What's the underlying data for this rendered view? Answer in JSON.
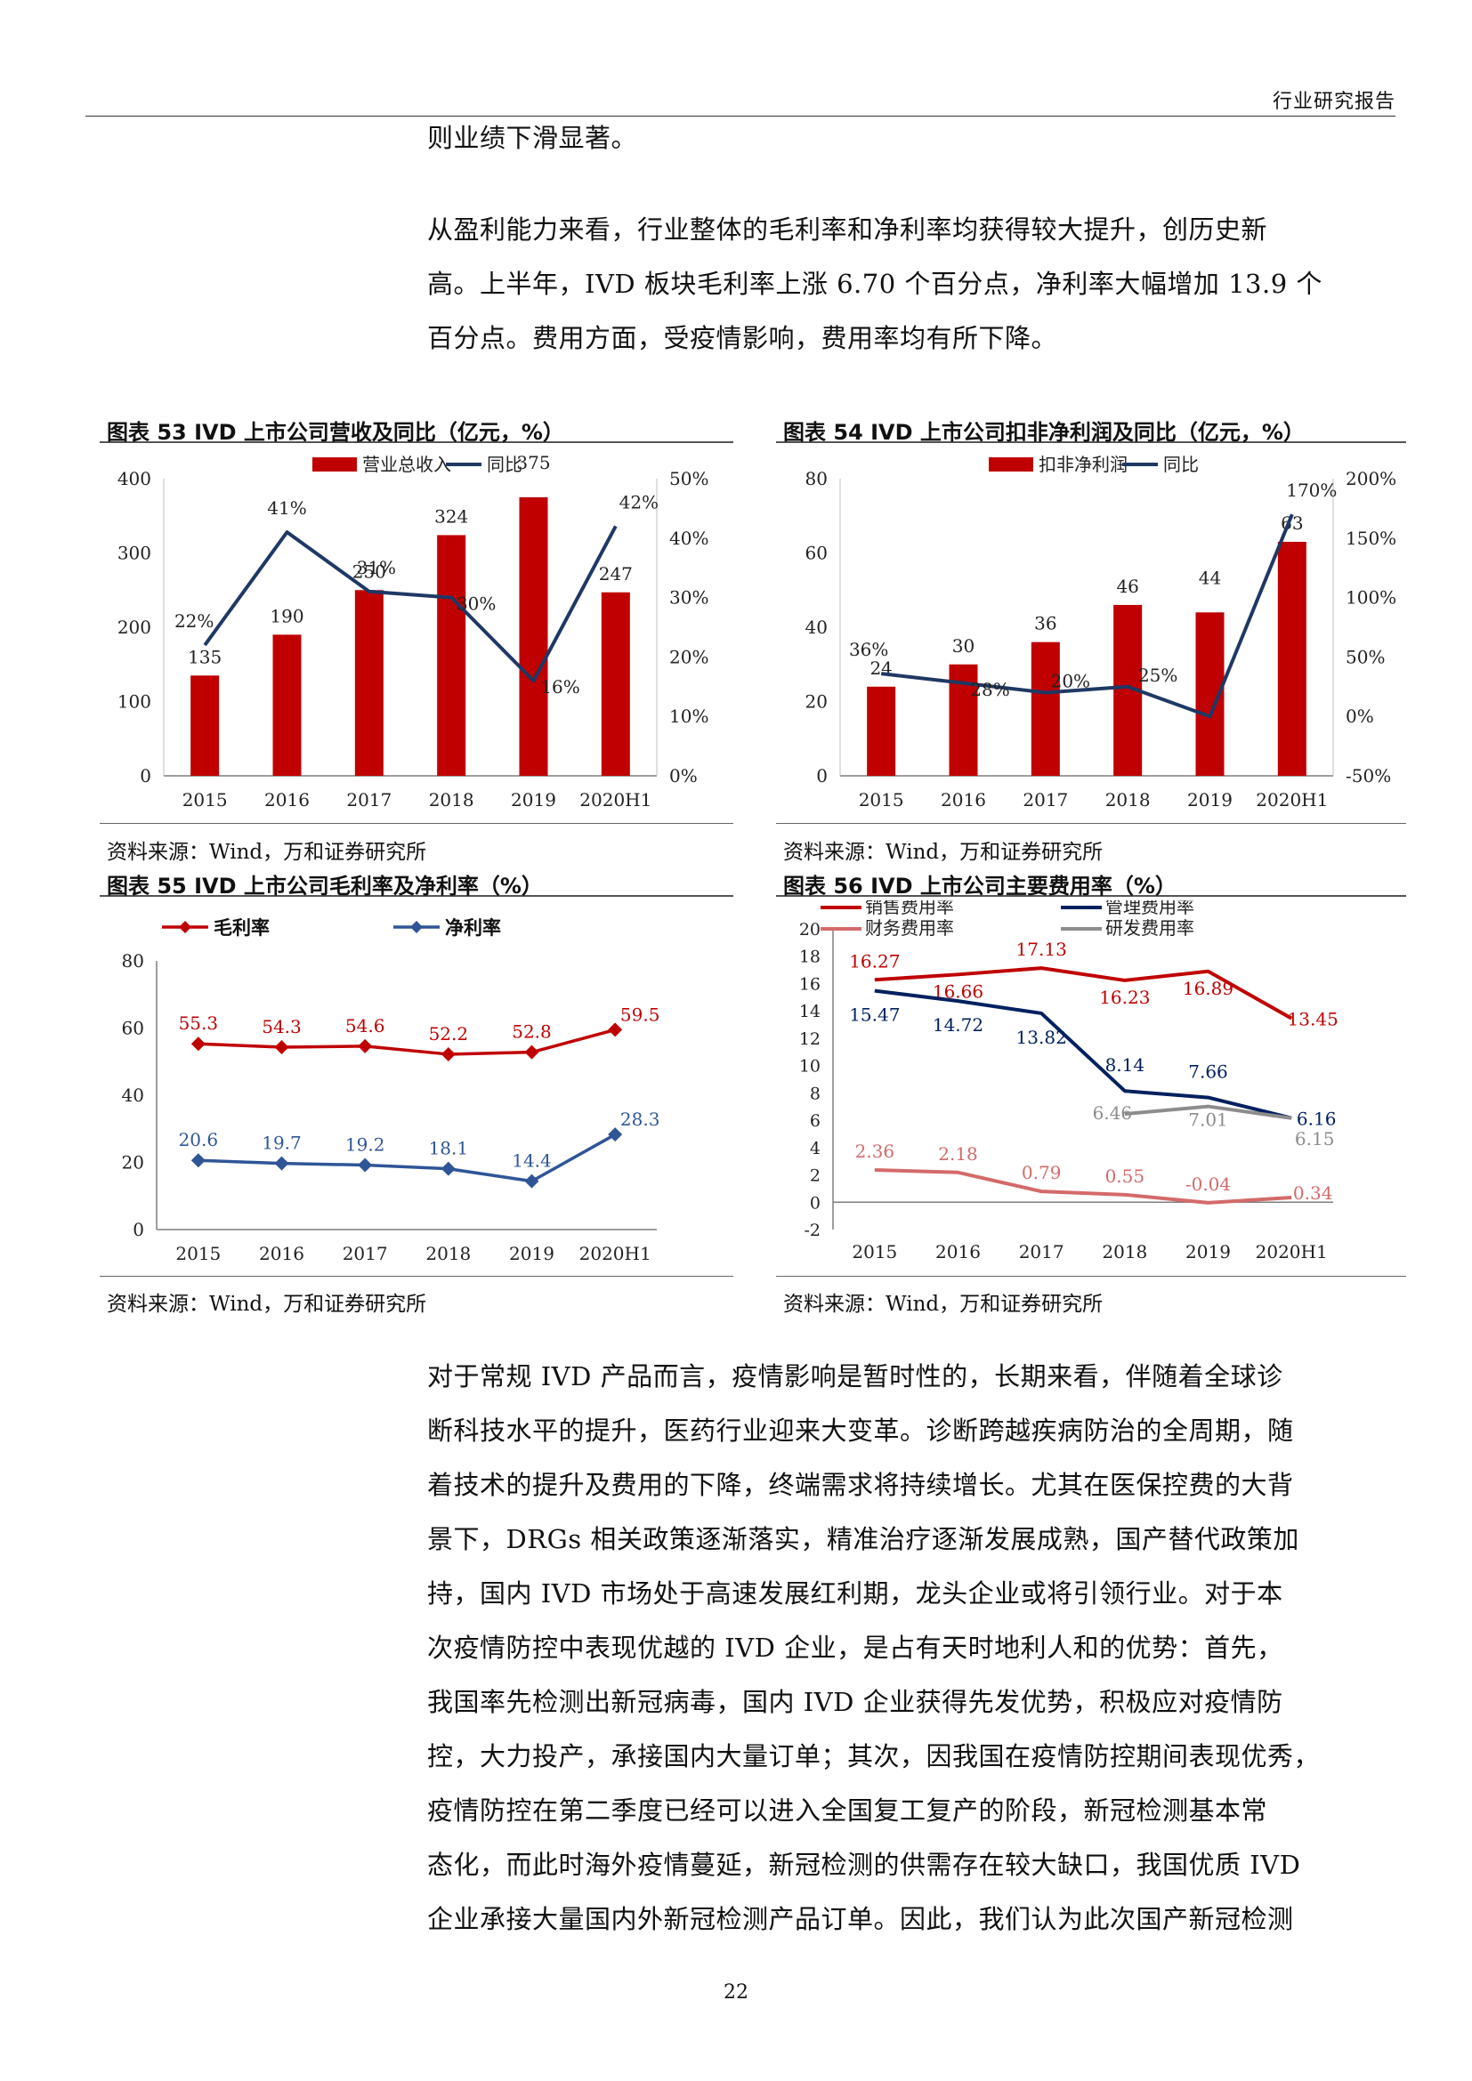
{
  "header": {
    "label": "行业研究报告"
  },
  "paragraphs": {
    "p1": [
      "则业绩下滑显著。"
    ],
    "p2": [
      "从盈利能力来看，行业整体的毛利率和净利率均获得较大提升，创历史新",
      "高。上半年，IVD 板块毛利率上涨 6.70 个百分点，净利率大幅增加 13.9 个",
      "百分点。费用方面，受疫情影响，费用率均有所下降。"
    ],
    "p3": [
      "对于常规 IVD 产品而言，疫情影响是暂时性的，长期来看，伴随着全球诊",
      "断科技水平的提升，医药行业迎来大变革。诊断跨越疾病防治的全周期，随",
      "着技术的提升及费用的下降，终端需求将持续增长。尤其在医保控费的大背",
      "景下，DRGs 相关政策逐渐落实，精准治疗逐渐发展成熟，国产替代政策加",
      "持，国内 IVD 市场处于高速发展红利期，龙头企业或将引领行业。对于本",
      "次疫情防控中表现优越的 IVD 企业，是占有天时地利人和的优势：首先，",
      "我国率先检测出新冠病毒，国内 IVD 企业获得先发优势，积极应对疫情防",
      "控，大力投产，承接国内大量订单；其次，因我国在疫情防控期间表现优秀，",
      "疫情防控在第二季度已经可以进入全国复工复产的阶段，新冠检测基本常",
      "态化，而此时海外疫情蔓延，新冠检测的供需存在较大缺口，我国优质 IVD",
      "企业承接大量国内外新冠检测产品订单。因此，我们认为此次国产新冠检测"
    ]
  },
  "page_number": "22",
  "chart_data": [
    {
      "type": "bar",
      "title": "图表 53   IVD 上市公司营收及同比（亿元，%）",
      "source": "资料来源：Wind，万和证券研究所",
      "categories": [
        "2015",
        "2016",
        "2017",
        "2018",
        "2019",
        "2020H1"
      ],
      "ylim": [
        0,
        400
      ],
      "yticks": [
        "0",
        "100",
        "200",
        "300",
        "400"
      ],
      "y2lim": [
        0,
        50
      ],
      "y2ticks": [
        "0%",
        "10%",
        "20%",
        "30%",
        "40%",
        "50%"
      ],
      "series": [
        {
          "name": "营业总收入",
          "kind": "bar",
          "axis": "left",
          "color": "#C00000",
          "values": [
            135,
            190,
            250,
            324,
            375,
            247
          ],
          "labels": [
            "135",
            "190",
            "250",
            "324",
            "375",
            "247"
          ]
        },
        {
          "name": "同比",
          "kind": "line",
          "axis": "right",
          "color": "#1F3864",
          "values": [
            22,
            41,
            31,
            30,
            16,
            42
          ],
          "labels": [
            "22%",
            "41%",
            "31%",
            "30%",
            "16%",
            "42%"
          ]
        }
      ]
    },
    {
      "type": "bar",
      "title": "图表 54   IVD 上市公司扣非净利润及同比（亿元，%）",
      "source": "资料来源：Wind，万和证券研究所",
      "categories": [
        "2015",
        "2016",
        "2017",
        "2018",
        "2019",
        "2020H1"
      ],
      "ylim": [
        0,
        80
      ],
      "yticks": [
        "0",
        "20",
        "40",
        "60",
        "80"
      ],
      "y2lim": [
        -50,
        200
      ],
      "y2ticks": [
        "-50%",
        "0%",
        "50%",
        "100%",
        "150%",
        "200%"
      ],
      "series": [
        {
          "name": "扣非净利润",
          "kind": "bar",
          "axis": "left",
          "color": "#C00000",
          "values": [
            24,
            30,
            36,
            46,
            44,
            63
          ],
          "labels": [
            "24",
            "30",
            "36",
            "46",
            "44",
            "63"
          ]
        },
        {
          "name": "同比",
          "kind": "line",
          "axis": "right",
          "color": "#1F3864",
          "values": [
            36,
            28,
            20,
            25,
            0,
            170
          ],
          "labels": [
            "36%",
            "28%",
            "20%",
            "25%",
            "",
            "170%"
          ]
        }
      ]
    },
    {
      "type": "line",
      "title": "图表 55   IVD 上市公司毛利率及净利率（%）",
      "source": "资料来源：Wind，万和证券研究所",
      "categories": [
        "2015",
        "2016",
        "2017",
        "2018",
        "2019",
        "2020H1"
      ],
      "ylim": [
        0,
        80
      ],
      "yticks": [
        "0",
        "20",
        "40",
        "60",
        "80"
      ],
      "series": [
        {
          "name": "毛利率",
          "color": "#C00000",
          "marker": "diamond",
          "values": [
            55.3,
            54.3,
            54.6,
            52.2,
            52.8,
            59.5
          ],
          "labels": [
            "55.3",
            "54.3",
            "54.6",
            "52.2",
            "52.8",
            "59.5"
          ]
        },
        {
          "name": "净利率",
          "color": "#2F5597",
          "marker": "diamond",
          "values": [
            20.6,
            19.7,
            19.2,
            18.1,
            14.4,
            28.3
          ],
          "labels": [
            "20.6",
            "19.7",
            "19.2",
            "18.1",
            "14.4",
            "28.3"
          ]
        }
      ]
    },
    {
      "type": "line",
      "title": "图表 56   IVD 上市公司主要费用率（%）",
      "source": "资料来源：Wind，万和证券研究所",
      "categories": [
        "2015",
        "2016",
        "2017",
        "2018",
        "2019",
        "2020H1"
      ],
      "ylim": [
        -2,
        20
      ],
      "yticks": [
        "-2",
        "0",
        "2",
        "4",
        "6",
        "8",
        "10",
        "12",
        "14",
        "16",
        "18",
        "20"
      ],
      "series": [
        {
          "name": "销售费用率",
          "color": "#C00000",
          "values": [
            16.27,
            16.66,
            17.13,
            16.23,
            16.89,
            13.45
          ],
          "labels": [
            "16.27",
            "16.66",
            "17.13",
            "16.23",
            "16.89",
            "13.45"
          ]
        },
        {
          "name": "管理费用率",
          "color": "#002060",
          "values": [
            15.47,
            14.72,
            13.82,
            8.14,
            7.66,
            6.16
          ],
          "labels": [
            "15.47",
            "14.72",
            "13.82",
            "8.14",
            "7.66",
            "6.16"
          ]
        },
        {
          "name": "财务费用率",
          "color": "#D46A6A",
          "values": [
            2.36,
            2.18,
            0.79,
            0.55,
            -0.04,
            0.34
          ],
          "labels": [
            "2.36",
            "2.18",
            "0.79",
            "0.55",
            "-0.04",
            "0.34"
          ]
        },
        {
          "name": "研发费用率",
          "color": "#8C8C8C",
          "values": [
            null,
            null,
            null,
            6.46,
            7.01,
            6.15
          ],
          "labels": [
            "",
            "",
            "",
            "6.46",
            "7.01",
            "6.15"
          ]
        }
      ]
    }
  ]
}
